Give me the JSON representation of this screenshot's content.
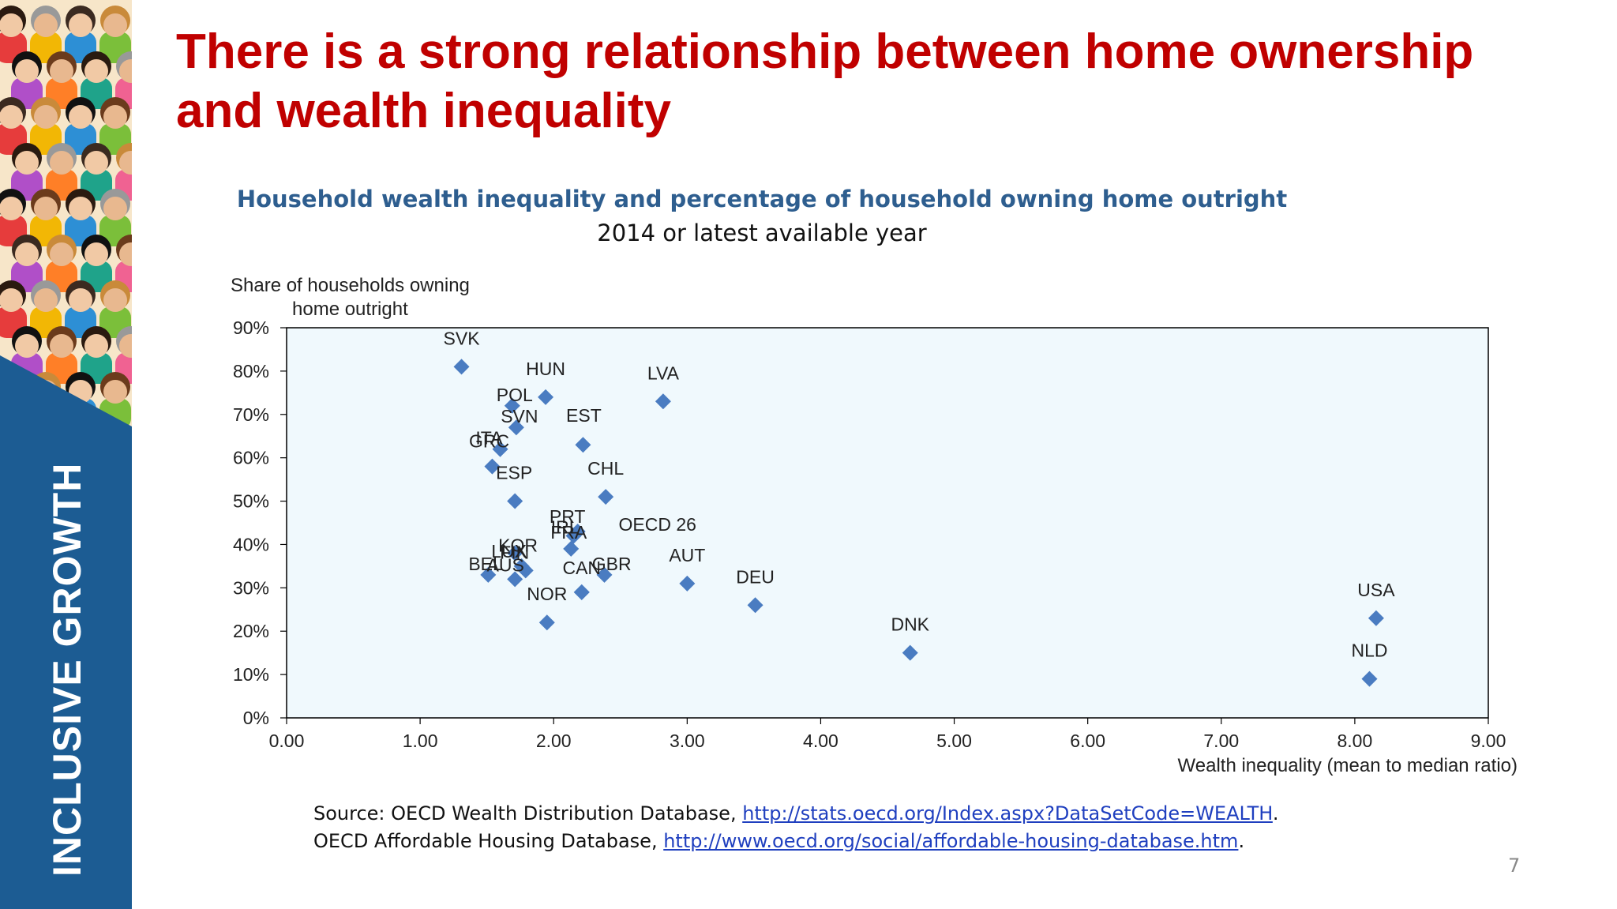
{
  "slide": {
    "title": "There is a strong relationship between home ownership and wealth inequality",
    "sidebar_label": "INCLUSIVE GROWTH",
    "page_number": "7"
  },
  "chart_data": {
    "type": "scatter",
    "title": "Household wealth inequality and percentage of household owning home outright",
    "subtitle": "2014 or latest available year",
    "ylabel_line1": "Share of households owning",
    "ylabel_line2": "home outright",
    "xlabel": "Wealth inequality (mean to median ratio)",
    "xlim": [
      0,
      9
    ],
    "ylim": [
      0,
      90
    ],
    "x_ticks": [
      "0.00",
      "1.00",
      "2.00",
      "3.00",
      "4.00",
      "5.00",
      "6.00",
      "7.00",
      "8.00",
      "9.00"
    ],
    "y_ticks": [
      "0%",
      "10%",
      "20%",
      "30%",
      "40%",
      "50%",
      "60%",
      "70%",
      "80%",
      "90%"
    ],
    "marker_color": "#4a7cc1",
    "plot_background": "#f0f9fd",
    "points": [
      {
        "label": "SVK",
        "x": 1.31,
        "y": 81
      },
      {
        "label": "HUN",
        "x": 1.94,
        "y": 74
      },
      {
        "label": "POL",
        "x": 1.69,
        "y": 72
      },
      {
        "label": "SVN",
        "x": 1.72,
        "y": 67
      },
      {
        "label": "LVA",
        "x": 2.82,
        "y": 73
      },
      {
        "label": "EST",
        "x": 2.22,
        "y": 63
      },
      {
        "label": "GRC",
        "x": 1.6,
        "y": 62
      },
      {
        "label": "ITA",
        "x": 1.54,
        "y": 58
      },
      {
        "label": "CHL",
        "x": 2.39,
        "y": 51
      },
      {
        "label": "ESP",
        "x": 1.71,
        "y": 50
      },
      {
        "label": "PRT",
        "x": 2.18,
        "y": 43
      },
      {
        "label": "IRL",
        "x": 2.15,
        "y": 42
      },
      {
        "label": "FRA",
        "x": 2.13,
        "y": 39
      },
      {
        "label": "OECD 26",
        "x": 2.38,
        "y": 33
      },
      {
        "label": "KOR",
        "x": 1.71,
        "y": 38
      },
      {
        "label": "LUX",
        "x": 1.76,
        "y": 35
      },
      {
        "label": "FIN",
        "x": 1.79,
        "y": 34
      },
      {
        "label": "BEL",
        "x": 1.51,
        "y": 33
      },
      {
        "label": "AUS",
        "x": 1.71,
        "y": 32
      },
      {
        "label": "GBR",
        "x": 2.21,
        "y": 29
      },
      {
        "label": "CAN",
        "x": 2.21,
        "y": 29
      },
      {
        "label": "AUT",
        "x": 3.0,
        "y": 31
      },
      {
        "label": "DEU",
        "x": 3.51,
        "y": 26
      },
      {
        "label": "NOR",
        "x": 1.95,
        "y": 22
      },
      {
        "label": "DNK",
        "x": 4.67,
        "y": 15
      },
      {
        "label": "USA",
        "x": 8.16,
        "y": 23
      },
      {
        "label": "NLD",
        "x": 8.11,
        "y": 9
      }
    ]
  },
  "source": {
    "line1_prefix": "Source: OECD Wealth Distribution Database, ",
    "line1_link": "http://stats.oecd.org/Index.aspx?DataSetCode=WEALTH",
    "line2_prefix": "OECD Affordable Housing Database, ",
    "line2_link": "http://www.oecd.org/social/affordable-housing-database.htm",
    "end": "."
  }
}
